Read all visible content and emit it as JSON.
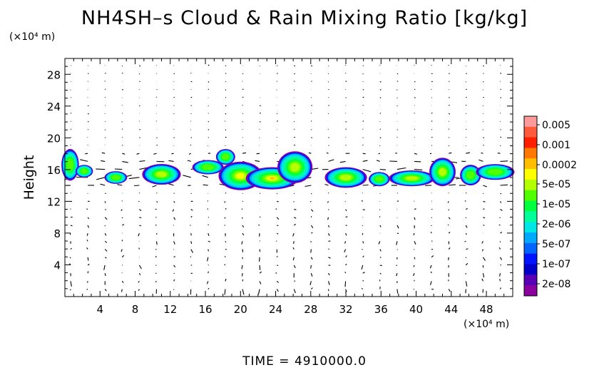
{
  "chart_data": {
    "type": "heatmap",
    "title": "NH4SH–s Cloud & Rain Mixing Ratio [kg/kg]",
    "ylabel": "Height",
    "y_unit": "(×10⁴ m)",
    "x_unit": "(×10⁴ m)",
    "footer": "TIME  =  4910000.0",
    "xlim": [
      0,
      51
    ],
    "ylim": [
      0,
      30
    ],
    "x_ticks": [
      4,
      8,
      12,
      16,
      20,
      24,
      28,
      32,
      36,
      40,
      44,
      48
    ],
    "y_ticks": [
      4,
      8,
      12,
      16,
      20,
      24,
      28
    ],
    "colorbar": {
      "labels": [
        "0.005",
        "0.001",
        "0.0002",
        "5e-05",
        "1e-05",
        "2e-06",
        "5e-07",
        "1e-07",
        "2e-08"
      ],
      "colors": [
        "#ff9a9a",
        "#ff5a3c",
        "#ff1e00",
        "#ff7800",
        "#ffbe00",
        "#ffff00",
        "#b4ff00",
        "#50ff00",
        "#00ff3c",
        "#00ff9a",
        "#00e6e6",
        "#00a8ff",
        "#0064ff",
        "#0014ff",
        "#0000c8",
        "#5a00b4",
        "#8c00a0"
      ]
    },
    "clouds": [
      {
        "x": 0.6,
        "y": 16.6,
        "w": 1.0,
        "h": 2.0,
        "level": 0.35
      },
      {
        "x": 2.2,
        "y": 15.8,
        "w": 1.0,
        "h": 0.8,
        "level": 0.3
      },
      {
        "x": 5.8,
        "y": 15.0,
        "w": 1.3,
        "h": 0.8,
        "level": 0.35
      },
      {
        "x": 11.0,
        "y": 15.4,
        "w": 2.2,
        "h": 1.3,
        "level": 0.45
      },
      {
        "x": 16.3,
        "y": 16.3,
        "w": 1.8,
        "h": 0.9,
        "level": 0.35
      },
      {
        "x": 18.3,
        "y": 17.6,
        "w": 1.1,
        "h": 1.0,
        "level": 0.3
      },
      {
        "x": 20.0,
        "y": 15.2,
        "w": 2.5,
        "h": 1.8,
        "level": 0.6
      },
      {
        "x": 23.6,
        "y": 14.9,
        "w": 3.0,
        "h": 1.4,
        "level": 0.85
      },
      {
        "x": 26.2,
        "y": 16.3,
        "w": 2.0,
        "h": 2.0,
        "level": 0.55
      },
      {
        "x": 32.0,
        "y": 15.0,
        "w": 2.4,
        "h": 1.3,
        "level": 0.45
      },
      {
        "x": 35.8,
        "y": 14.8,
        "w": 1.2,
        "h": 0.9,
        "level": 0.35
      },
      {
        "x": 39.5,
        "y": 14.9,
        "w": 2.6,
        "h": 1.0,
        "level": 0.45
      },
      {
        "x": 43.0,
        "y": 15.7,
        "w": 1.5,
        "h": 1.8,
        "level": 0.5
      },
      {
        "x": 46.2,
        "y": 15.3,
        "w": 1.2,
        "h": 1.3,
        "level": 0.4
      },
      {
        "x": 49.0,
        "y": 15.7,
        "w": 2.2,
        "h": 1.0,
        "level": 0.35
      }
    ]
  }
}
